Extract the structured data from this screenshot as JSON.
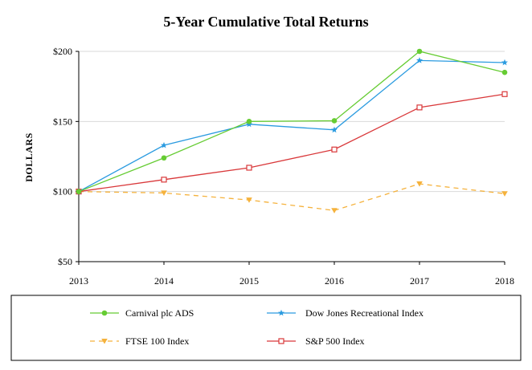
{
  "chart_data": {
    "type": "line",
    "title": "5-Year Cumulative Total Returns",
    "xlabel": "",
    "ylabel": "DOLLARS",
    "x": [
      "2013",
      "2014",
      "2015",
      "2016",
      "2017",
      "2018"
    ],
    "ylim": [
      50,
      200
    ],
    "yticks": [
      50,
      100,
      150,
      200
    ],
    "ytick_labels": [
      "$50",
      "$100",
      "$150",
      "$200"
    ],
    "grid": "horizontal",
    "legend_position": "bottom",
    "series": [
      {
        "name": "Carnival plc ADS",
        "values": [
          100,
          124,
          150,
          150.5,
          200,
          185
        ],
        "color": "#66cc33",
        "style": "solid",
        "marker": "circle"
      },
      {
        "name": "Dow Jones Recreational Index",
        "values": [
          100,
          133,
          148,
          144,
          193.5,
          192
        ],
        "color": "#2b9be0",
        "style": "solid",
        "marker": "star"
      },
      {
        "name": "FTSE 100 Index",
        "values": [
          100,
          99,
          94,
          86.5,
          105.5,
          98.5
        ],
        "color": "#f5b23c",
        "style": "dashed",
        "marker": "triangle-down"
      },
      {
        "name": "S&P 500 Index",
        "values": [
          100,
          108.5,
          117,
          130,
          160,
          169.5
        ],
        "color": "#d9383a",
        "style": "solid",
        "marker": "square-open"
      }
    ]
  }
}
